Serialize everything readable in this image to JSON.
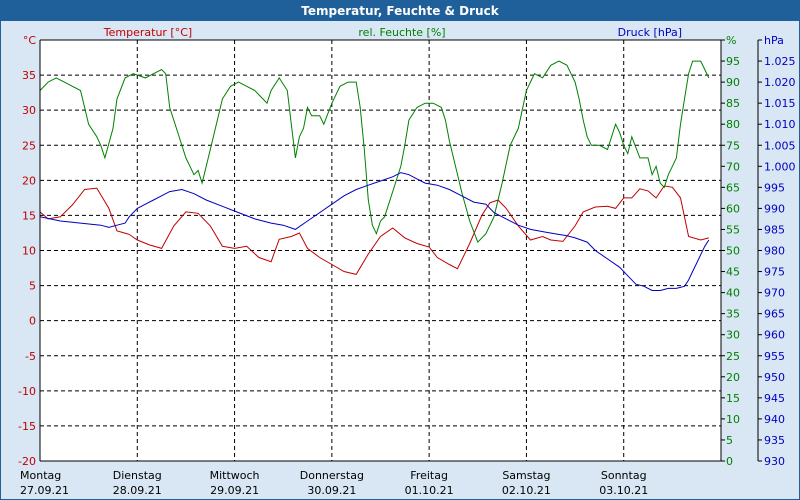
{
  "window": {
    "title": "Temperatur, Feuchte & Druck"
  },
  "chart_data": {
    "type": "line",
    "title": "Temperatur, Feuchte & Druck",
    "x_range_hours": [
      0,
      168
    ],
    "x_tick_days": [
      {
        "day": "Montag",
        "date": "27.09.21"
      },
      {
        "day": "Dienstag",
        "date": "28.09.21"
      },
      {
        "day": "Mittwoch",
        "date": "29.09.21"
      },
      {
        "day": "Donnerstag",
        "date": "30.09.21"
      },
      {
        "day": "Freitag",
        "date": "01.10.21"
      },
      {
        "day": "Samstag",
        "date": "02.10.21"
      },
      {
        "day": "Sonntag",
        "date": "03.10.21"
      }
    ],
    "grid": true,
    "axes": {
      "left": {
        "label": "Temperatur [°C]",
        "unit": "°C",
        "range": [
          -20,
          40
        ],
        "step": 5,
        "color": "#c00000"
      },
      "right1": {
        "label": "rel. Feuchte [%]",
        "unit": "%",
        "range": [
          0,
          100
        ],
        "step": 5,
        "color": "#008000"
      },
      "right2": {
        "label": "Druck [hPa]",
        "unit": "hPa",
        "range": [
          930,
          1030
        ],
        "step": 5,
        "color": "#0000c0"
      }
    },
    "series": [
      {
        "name": "Temperatur [°C]",
        "axis": "left",
        "color": "#c00000",
        "points": [
          [
            0,
            15.5
          ],
          [
            2,
            14.5
          ],
          [
            5,
            14.8
          ],
          [
            8,
            16.5
          ],
          [
            11,
            18.7
          ],
          [
            14,
            18.9
          ],
          [
            17,
            16
          ],
          [
            19,
            12.8
          ],
          [
            22,
            12.3
          ],
          [
            24,
            11.5
          ],
          [
            27,
            10.8
          ],
          [
            30,
            10.3
          ],
          [
            33,
            13.5
          ],
          [
            36,
            15.5
          ],
          [
            39,
            15.3
          ],
          [
            42,
            13.5
          ],
          [
            45,
            10.6
          ],
          [
            48,
            10.3
          ],
          [
            51,
            10.6
          ],
          [
            54,
            9
          ],
          [
            57,
            8.4
          ],
          [
            59,
            11.6
          ],
          [
            62,
            12
          ],
          [
            64,
            12.5
          ],
          [
            66,
            10.3
          ],
          [
            69,
            9
          ],
          [
            72,
            8
          ],
          [
            75,
            7
          ],
          [
            78,
            6.6
          ],
          [
            81,
            9.5
          ],
          [
            84,
            12
          ],
          [
            87,
            13.2
          ],
          [
            90,
            11.8
          ],
          [
            93,
            11
          ],
          [
            96,
            10.5
          ],
          [
            98,
            9
          ],
          [
            101,
            8
          ],
          [
            103,
            7.4
          ],
          [
            106,
            11
          ],
          [
            109,
            15
          ],
          [
            111,
            16.8
          ],
          [
            113,
            17.2
          ],
          [
            115,
            16
          ],
          [
            118,
            13.5
          ],
          [
            121,
            11.5
          ],
          [
            124,
            12
          ],
          [
            126,
            11.5
          ],
          [
            129,
            11.3
          ],
          [
            132,
            13.5
          ],
          [
            134,
            15.5
          ],
          [
            137,
            16.2
          ],
          [
            140,
            16.3
          ],
          [
            142,
            16
          ],
          [
            144,
            17.5
          ],
          [
            146,
            17.5
          ],
          [
            148,
            18.8
          ],
          [
            150,
            18.5
          ],
          [
            152,
            17.5
          ],
          [
            154,
            19.2
          ],
          [
            156,
            19
          ],
          [
            158,
            17.5
          ],
          [
            160,
            12
          ],
          [
            163,
            11.5
          ],
          [
            165,
            11.8
          ]
        ]
      },
      {
        "name": "rel. Feuchte [%]",
        "axis": "right1",
        "color": "#008000",
        "points": [
          [
            0,
            88
          ],
          [
            2,
            90
          ],
          [
            4,
            91
          ],
          [
            6,
            90
          ],
          [
            8,
            89
          ],
          [
            10,
            88
          ],
          [
            11,
            84
          ],
          [
            12,
            80
          ],
          [
            14,
            77
          ],
          [
            15,
            75
          ],
          [
            16,
            72
          ],
          [
            18,
            79
          ],
          [
            19,
            86
          ],
          [
            21,
            91
          ],
          [
            23,
            92
          ],
          [
            26,
            91
          ],
          [
            28,
            92
          ],
          [
            30,
            93
          ],
          [
            31,
            92
          ],
          [
            32,
            84
          ],
          [
            34,
            78
          ],
          [
            36,
            72
          ],
          [
            38,
            68
          ],
          [
            39,
            69
          ],
          [
            40,
            66
          ],
          [
            42,
            74
          ],
          [
            44,
            82
          ],
          [
            45,
            86
          ],
          [
            47,
            89
          ],
          [
            49,
            90
          ],
          [
            51,
            89
          ],
          [
            53,
            88
          ],
          [
            55,
            86
          ],
          [
            56,
            85
          ],
          [
            57,
            88
          ],
          [
            59,
            91
          ],
          [
            61,
            88
          ],
          [
            62,
            80
          ],
          [
            63,
            72
          ],
          [
            64,
            77
          ],
          [
            65,
            79
          ],
          [
            66,
            84
          ],
          [
            67,
            82
          ],
          [
            69,
            82
          ],
          [
            70,
            80
          ],
          [
            72,
            85
          ],
          [
            74,
            89
          ],
          [
            76,
            90
          ],
          [
            78,
            90
          ],
          [
            79,
            84
          ],
          [
            80,
            74
          ],
          [
            81,
            62
          ],
          [
            82,
            56
          ],
          [
            83,
            54
          ],
          [
            84,
            57
          ],
          [
            85,
            58
          ],
          [
            87,
            64
          ],
          [
            89,
            70
          ],
          [
            90,
            75
          ],
          [
            91,
            81
          ],
          [
            93,
            84
          ],
          [
            95,
            85
          ],
          [
            97,
            85
          ],
          [
            99,
            84
          ],
          [
            100,
            81
          ],
          [
            101,
            76
          ],
          [
            102,
            72
          ],
          [
            104,
            64
          ],
          [
            106,
            57
          ],
          [
            108,
            52
          ],
          [
            110,
            54
          ],
          [
            112,
            58
          ],
          [
            114,
            66
          ],
          [
            116,
            75
          ],
          [
            118,
            79
          ],
          [
            120,
            88
          ],
          [
            122,
            92
          ],
          [
            124,
            91
          ],
          [
            126,
            94
          ],
          [
            128,
            95
          ],
          [
            130,
            94
          ],
          [
            131,
            92
          ],
          [
            132,
            90
          ],
          [
            133,
            86
          ],
          [
            134,
            81
          ],
          [
            135,
            77
          ],
          [
            136,
            75
          ],
          [
            138,
            75
          ],
          [
            140,
            74
          ],
          [
            142,
            80
          ],
          [
            143,
            78
          ],
          [
            144,
            75
          ],
          [
            145,
            73
          ],
          [
            146,
            77
          ],
          [
            148,
            72
          ],
          [
            150,
            72
          ],
          [
            151,
            68
          ],
          [
            152,
            70
          ],
          [
            153,
            66
          ],
          [
            154,
            65
          ],
          [
            155,
            68
          ],
          [
            156,
            70
          ],
          [
            157,
            72
          ],
          [
            158,
            80
          ],
          [
            159,
            86
          ],
          [
            160,
            92
          ],
          [
            161,
            95
          ],
          [
            163,
            95
          ],
          [
            164,
            93
          ],
          [
            165,
            91
          ]
        ]
      },
      {
        "name": "Druck [hPa]",
        "axis": "right2",
        "color": "#0000c0",
        "points": [
          [
            0,
            988
          ],
          [
            5,
            987
          ],
          [
            10,
            986.5
          ],
          [
            15,
            986
          ],
          [
            17,
            985.5
          ],
          [
            19,
            986
          ],
          [
            21,
            986.5
          ],
          [
            22,
            988
          ],
          [
            24,
            990
          ],
          [
            26,
            991
          ],
          [
            28,
            992
          ],
          [
            30,
            993
          ],
          [
            32,
            994
          ],
          [
            35,
            994.5
          ],
          [
            38,
            993.5
          ],
          [
            41,
            992
          ],
          [
            45,
            990.5
          ],
          [
            49,
            989
          ],
          [
            53,
            987.5
          ],
          [
            57,
            986.5
          ],
          [
            60,
            986
          ],
          [
            63,
            985
          ],
          [
            66,
            987
          ],
          [
            69,
            989
          ],
          [
            72,
            991
          ],
          [
            75,
            993
          ],
          [
            78,
            994.5
          ],
          [
            81,
            995.5
          ],
          [
            84,
            996.5
          ],
          [
            87,
            997.5
          ],
          [
            89,
            998.5
          ],
          [
            91,
            998
          ],
          [
            93,
            997
          ],
          [
            95,
            996
          ],
          [
            98,
            995.5
          ],
          [
            101,
            994.5
          ],
          [
            104,
            993
          ],
          [
            107,
            991.5
          ],
          [
            110,
            991
          ],
          [
            112,
            989
          ],
          [
            115,
            987.5
          ],
          [
            118,
            986
          ],
          [
            121,
            985
          ],
          [
            124,
            984.5
          ],
          [
            127,
            984
          ],
          [
            130,
            983.5
          ],
          [
            132,
            983
          ],
          [
            135,
            982
          ],
          [
            137,
            980
          ],
          [
            140,
            978
          ],
          [
            143,
            976
          ],
          [
            145,
            974
          ],
          [
            147,
            972
          ],
          [
            149,
            971.5
          ],
          [
            151,
            970.5
          ],
          [
            153,
            970.5
          ],
          [
            155,
            971
          ],
          [
            157,
            971
          ],
          [
            159,
            971.5
          ],
          [
            160,
            973
          ],
          [
            161,
            975
          ],
          [
            162,
            977
          ],
          [
            163,
            979
          ],
          [
            164,
            981
          ],
          [
            165,
            982.5
          ]
        ]
      }
    ]
  }
}
